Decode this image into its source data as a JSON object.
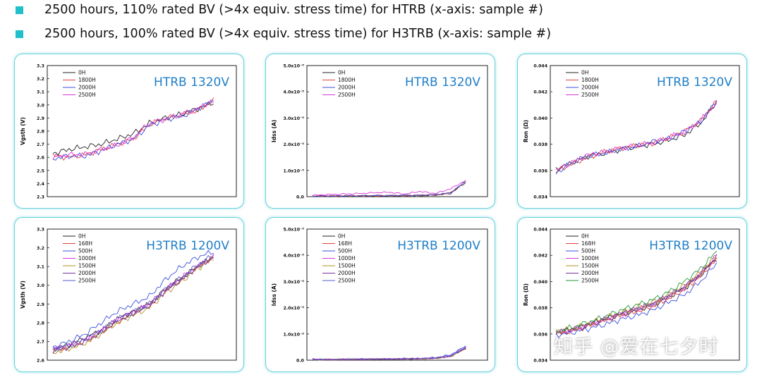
{
  "bullets": [
    "2500 hours, 110% rated BV (>4x equiv. stress time) for HTRB (x-axis: sample #)",
    "2500 hours, 100% rated BV (>4x equiv. stress time) for H3TRB (x-axis: sample #)"
  ],
  "accent_color": "#1fc0c9",
  "watermark": "知乎 @爱在七夕时",
  "chart_data": [
    {
      "type": "line",
      "annotation": "HTRB 1320V",
      "ylabel": "Vgsth (V)",
      "xlabel": "",
      "ylim": [
        2.3,
        3.3
      ],
      "yticks": [
        "2.3",
        "2.4",
        "2.5",
        "2.6",
        "2.7",
        "2.8",
        "2.9",
        "3.0",
        "3.1",
        "3.2",
        "3.3"
      ],
      "legend": [
        "0H",
        "1800H",
        "2000H",
        "2500H"
      ],
      "series": [
        {
          "name": "0H",
          "color": "#222222",
          "values": [
            2.63,
            2.66,
            2.68,
            2.7,
            2.74,
            2.78,
            2.86,
            2.9,
            2.93,
            2.97,
            3.02
          ]
        },
        {
          "name": "1800H",
          "color": "#e0403a",
          "values": [
            2.61,
            2.6,
            2.62,
            2.66,
            2.7,
            2.74,
            2.85,
            2.9,
            2.92,
            2.96,
            3.03
          ]
        },
        {
          "name": "2000H",
          "color": "#3b4fe0",
          "values": [
            2.59,
            2.61,
            2.61,
            2.65,
            2.7,
            2.74,
            2.84,
            2.89,
            2.91,
            2.97,
            3.03
          ]
        },
        {
          "name": "2500H",
          "color": "#d935d9",
          "values": [
            2.6,
            2.62,
            2.62,
            2.66,
            2.69,
            2.75,
            2.86,
            2.89,
            2.93,
            2.97,
            3.04
          ]
        }
      ]
    },
    {
      "type": "line",
      "annotation": "HTRB 1320V",
      "ylabel": "Idss (A)",
      "xlabel": "",
      "ylim": [
        0,
        5.0
      ],
      "yticks": [
        "0.0",
        "1.0x10⁻⁵",
        "2.0x10⁻⁵",
        "3.0x10⁻⁵",
        "4.0x10⁻⁵",
        "5.0x10⁻⁵"
      ],
      "legend": [
        "0H",
        "1800H",
        "2000H",
        "2500H"
      ],
      "series": [
        {
          "name": "0H",
          "color": "#222222",
          "values": [
            0.02,
            0.02,
            0.02,
            0.03,
            0.03,
            0.03,
            0.04,
            0.04,
            0.06,
            0.12,
            0.55
          ]
        },
        {
          "name": "1800H",
          "color": "#e0403a",
          "values": [
            0.02,
            0.03,
            0.03,
            0.03,
            0.03,
            0.04,
            0.04,
            0.05,
            0.07,
            0.14,
            0.6
          ]
        },
        {
          "name": "2000H",
          "color": "#3b4fe0",
          "values": [
            0.02,
            0.02,
            0.03,
            0.03,
            0.04,
            0.04,
            0.05,
            0.05,
            0.08,
            0.15,
            0.58
          ]
        },
        {
          "name": "2500H",
          "color": "#d935d9",
          "values": [
            0.05,
            0.08,
            0.1,
            0.12,
            0.15,
            0.17,
            0.1,
            0.2,
            0.12,
            0.3,
            0.62
          ]
        }
      ]
    },
    {
      "type": "line",
      "annotation": "HTRB 1320V",
      "ylabel": "Ron (Ω)",
      "xlabel": "",
      "ylim": [
        0.034,
        0.044
      ],
      "yticks": [
        "0.034",
        "0.036",
        "0.038",
        "0.040",
        "0.042",
        "0.044"
      ],
      "legend": [
        "0H",
        "1800H",
        "2000H",
        "2500H"
      ],
      "series": [
        {
          "name": "0H",
          "color": "#222222",
          "values": [
            0.0361,
            0.0366,
            0.0371,
            0.0373,
            0.0376,
            0.0378,
            0.038,
            0.0383,
            0.0387,
            0.0396,
            0.0412
          ]
        },
        {
          "name": "1800H",
          "color": "#e0403a",
          "values": [
            0.0359,
            0.0365,
            0.037,
            0.0374,
            0.0377,
            0.0379,
            0.0381,
            0.0385,
            0.039,
            0.0398,
            0.0413
          ]
        },
        {
          "name": "2000H",
          "color": "#3b4fe0",
          "values": [
            0.0358,
            0.0366,
            0.0371,
            0.0373,
            0.0376,
            0.0378,
            0.0382,
            0.0384,
            0.039,
            0.0397,
            0.0413
          ]
        },
        {
          "name": "2500H",
          "color": "#d935d9",
          "values": [
            0.036,
            0.0366,
            0.0372,
            0.0374,
            0.0377,
            0.0379,
            0.0381,
            0.0385,
            0.0389,
            0.0398,
            0.0412
          ]
        }
      ]
    },
    {
      "type": "line",
      "annotation": "H3TRB 1200V",
      "ylabel": "Vgsth (V)",
      "xlabel": "",
      "ylim": [
        2.6,
        3.3
      ],
      "yticks": [
        "2.6",
        "2.7",
        "2.8",
        "2.9",
        "3.0",
        "3.1",
        "3.2",
        "3.3"
      ],
      "legend": [
        "0H",
        "168H",
        "500H",
        "1000H",
        "1500H",
        "2000H",
        "2500H"
      ],
      "series": [
        {
          "name": "0H",
          "color": "#222222",
          "values": [
            2.66,
            2.68,
            2.72,
            2.76,
            2.82,
            2.86,
            2.9,
            2.98,
            3.04,
            3.1,
            3.15
          ]
        },
        {
          "name": "168H",
          "color": "#e0403a",
          "values": [
            2.65,
            2.67,
            2.7,
            2.75,
            2.8,
            2.85,
            2.89,
            2.97,
            3.03,
            3.1,
            3.15
          ]
        },
        {
          "name": "500H",
          "color": "#3b4fe0",
          "values": [
            2.67,
            2.7,
            2.74,
            2.8,
            2.86,
            2.9,
            2.94,
            3.03,
            3.1,
            3.15,
            3.18
          ]
        },
        {
          "name": "1000H",
          "color": "#d935d9",
          "values": [
            2.66,
            2.68,
            2.71,
            2.76,
            2.82,
            2.86,
            2.9,
            2.98,
            3.04,
            3.1,
            3.15
          ]
        },
        {
          "name": "1500H",
          "color": "#b09020",
          "values": [
            2.64,
            2.66,
            2.69,
            2.74,
            2.8,
            2.84,
            2.88,
            2.96,
            3.02,
            3.09,
            3.14
          ]
        },
        {
          "name": "2000H",
          "color": "#7a2fa0",
          "values": [
            2.65,
            2.67,
            2.7,
            2.75,
            2.81,
            2.85,
            2.89,
            2.97,
            3.03,
            3.1,
            3.15
          ]
        },
        {
          "name": "2500H",
          "color": "#5a5ad0",
          "values": [
            2.66,
            2.68,
            2.71,
            2.76,
            2.82,
            2.86,
            2.9,
            2.98,
            3.04,
            3.11,
            3.16
          ]
        }
      ]
    },
    {
      "type": "line",
      "annotation": "H3TRB 1200V",
      "ylabel": "Idss (A)",
      "xlabel": "",
      "ylim": [
        0,
        5.0
      ],
      "yticks": [
        "0.0",
        "1.0x10⁻⁵",
        "2.0x10⁻⁵",
        "3.0x10⁻⁵",
        "4.0x10⁻⁵",
        "5.0x10⁻⁵"
      ],
      "legend": [
        "0H",
        "168H",
        "500H",
        "1000H",
        "1500H",
        "2000H",
        "2500H"
      ],
      "series": [
        {
          "name": "0H",
          "color": "#222222",
          "values": [
            0.02,
            0.02,
            0.03,
            0.03,
            0.03,
            0.04,
            0.04,
            0.05,
            0.07,
            0.14,
            0.45
          ]
        },
        {
          "name": "168H",
          "color": "#e0403a",
          "values": [
            0.02,
            0.03,
            0.03,
            0.03,
            0.04,
            0.04,
            0.05,
            0.05,
            0.08,
            0.15,
            0.48
          ]
        },
        {
          "name": "500H",
          "color": "#3b4fe0",
          "values": [
            0.05,
            0.02,
            0.03,
            0.05,
            0.04,
            0.04,
            0.06,
            0.06,
            0.1,
            0.2,
            0.55
          ]
        },
        {
          "name": "1000H",
          "color": "#d935d9",
          "values": [
            0.02,
            0.02,
            0.03,
            0.04,
            0.04,
            0.05,
            0.05,
            0.06,
            0.08,
            0.16,
            0.47
          ]
        },
        {
          "name": "1500H",
          "color": "#b09020",
          "values": [
            0.02,
            0.02,
            0.03,
            0.03,
            0.04,
            0.04,
            0.05,
            0.05,
            0.07,
            0.14,
            0.44
          ]
        },
        {
          "name": "2000H",
          "color": "#7a2fa0",
          "values": [
            0.02,
            0.02,
            0.03,
            0.03,
            0.04,
            0.04,
            0.05,
            0.06,
            0.08,
            0.15,
            0.46
          ]
        },
        {
          "name": "2500H",
          "color": "#5a5ad0",
          "values": [
            0.02,
            0.03,
            0.03,
            0.04,
            0.04,
            0.05,
            0.05,
            0.06,
            0.09,
            0.17,
            0.5
          ]
        }
      ]
    },
    {
      "type": "line",
      "annotation": "H3TRB 1200V",
      "ylabel": "Ron (Ω)",
      "xlabel": "",
      "ylim": [
        0.034,
        0.044
      ],
      "yticks": [
        "0.034",
        "0.036",
        "0.038",
        "0.040",
        "0.042",
        "0.044"
      ],
      "legend": [
        "0H",
        "168H",
        "500H",
        "1000H",
        "1500H",
        "2000H",
        "2500H"
      ],
      "series": [
        {
          "name": "0H",
          "color": "#222222",
          "values": [
            0.0361,
            0.0363,
            0.0367,
            0.0371,
            0.0375,
            0.0378,
            0.0382,
            0.0388,
            0.0395,
            0.0405,
            0.0418
          ]
        },
        {
          "name": "168H",
          "color": "#e0403a",
          "values": [
            0.036,
            0.0362,
            0.0366,
            0.037,
            0.0374,
            0.0377,
            0.0381,
            0.0387,
            0.0394,
            0.0404,
            0.0417
          ]
        },
        {
          "name": "500H",
          "color": "#3b4fe0",
          "values": [
            0.0359,
            0.0361,
            0.0364,
            0.0367,
            0.0371,
            0.0374,
            0.0378,
            0.0384,
            0.039,
            0.04,
            0.0414
          ]
        },
        {
          "name": "1000H",
          "color": "#d935d9",
          "values": [
            0.0361,
            0.0363,
            0.0367,
            0.0371,
            0.0375,
            0.0379,
            0.0383,
            0.0389,
            0.0396,
            0.0406,
            0.042
          ]
        },
        {
          "name": "1500H",
          "color": "#b09020",
          "values": [
            0.0362,
            0.0364,
            0.0368,
            0.0372,
            0.0376,
            0.038,
            0.0384,
            0.039,
            0.0397,
            0.0407,
            0.042
          ]
        },
        {
          "name": "2000H",
          "color": "#7a2fa0",
          "values": [
            0.0361,
            0.0363,
            0.0367,
            0.0371,
            0.0375,
            0.0379,
            0.0383,
            0.0389,
            0.0396,
            0.0406,
            0.0419
          ]
        },
        {
          "name": "2500H",
          "color": "#2a9a3a",
          "values": [
            0.0362,
            0.0365,
            0.0369,
            0.0373,
            0.0378,
            0.0382,
            0.0386,
            0.0392,
            0.04,
            0.041,
            0.0423
          ]
        }
      ]
    }
  ]
}
